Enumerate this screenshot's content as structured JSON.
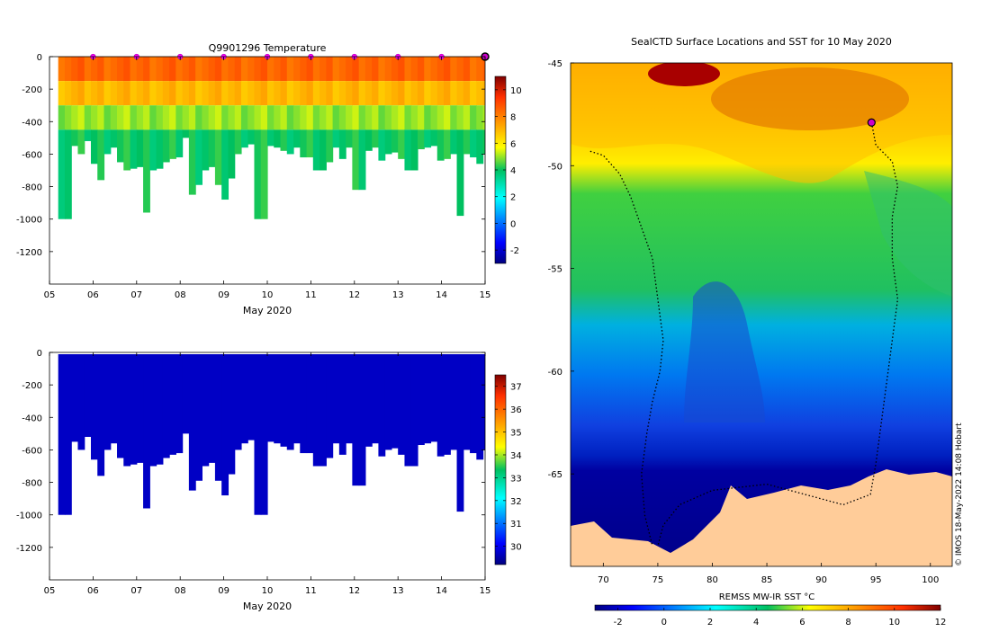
{
  "temperature_panel": {
    "title": "Q9901296  Temperature",
    "xlabel": "May 2020",
    "x_ticks": [
      "05",
      "06",
      "07",
      "08",
      "09",
      "10",
      "11",
      "12",
      "13",
      "14",
      "15"
    ],
    "y_ticks": [
      "0",
      "-200",
      "-400",
      "-600",
      "-800",
      "-1000",
      "-1200"
    ],
    "colorbar_ticks": [
      "10",
      "8",
      "6",
      "4",
      "2",
      "0",
      "-2"
    ]
  },
  "salinity_panel": {
    "xlabel": "May 2020",
    "x_ticks": [
      "05",
      "06",
      "07",
      "08",
      "09",
      "10",
      "11",
      "12",
      "13",
      "14",
      "15"
    ],
    "y_ticks": [
      "0",
      "-200",
      "-400",
      "-600",
      "-800",
      "-1000",
      "-1200"
    ],
    "colorbar_ticks": [
      "37",
      "36",
      "35",
      "34",
      "33",
      "32",
      "31",
      "30"
    ]
  },
  "map_panel": {
    "title": "SealCTD Surface Locations and SST for 10 May 2020",
    "lat_ticks": [
      "-45",
      "-50",
      "-55",
      "-60",
      "-65"
    ],
    "lon_ticks": [
      "70",
      "75",
      "80",
      "85",
      "90",
      "95",
      "100"
    ],
    "colorbar_label": "REMSS MW-IR SST °C",
    "colorbar_ticks": [
      "-2",
      "0",
      "2",
      "4",
      "6",
      "8",
      "10",
      "12"
    ],
    "credit": "© IMOS 18-May-2022 14:08 Hobart"
  },
  "chart_data": [
    {
      "type": "heatmap",
      "title": "Q9901296  Temperature",
      "xlabel": "May 2020",
      "ylabel": "",
      "xlim": [
        5,
        15
      ],
      "ylim": [
        -1400,
        0
      ],
      "clim": [
        -3,
        11
      ],
      "variable": "temperature",
      "profile_days": [
        5.2,
        5.35,
        5.5,
        5.65,
        5.8,
        5.95,
        6.1,
        6.25,
        6.4,
        6.55,
        6.7,
        6.85,
        7.0,
        7.15,
        7.3,
        7.45,
        7.6,
        7.75,
        7.9,
        8.05,
        8.2,
        8.35,
        8.5,
        8.65,
        8.8,
        8.95,
        9.1,
        9.25,
        9.4,
        9.55,
        9.7,
        9.85,
        10.0,
        10.15,
        10.3,
        10.45,
        10.6,
        10.75,
        10.9,
        11.05,
        11.2,
        11.35,
        11.5,
        11.65,
        11.8,
        11.95,
        12.1,
        12.25,
        12.4,
        12.55,
        12.7,
        12.85,
        13.0,
        13.15,
        13.3,
        13.45,
        13.6,
        13.75,
        13.9,
        14.05,
        14.2,
        14.35,
        14.5,
        14.65,
        14.8,
        14.95
      ],
      "profile_max_depths": [
        1000,
        1000,
        550,
        600,
        520,
        660,
        760,
        600,
        560,
        650,
        700,
        690,
        680,
        960,
        700,
        690,
        650,
        630,
        620,
        500,
        850,
        790,
        700,
        680,
        790,
        880,
        750,
        600,
        560,
        540,
        1000,
        1000,
        550,
        560,
        580,
        600,
        560,
        620,
        620,
        700,
        700,
        650,
        560,
        630,
        560,
        820,
        820,
        580,
        560,
        640,
        600,
        590,
        630,
        700,
        700,
        570,
        560,
        550,
        640,
        630,
        600,
        980,
        600,
        620,
        660,
        600
      ],
      "temperature_zones": [
        {
          "depth_range": [
            0,
            150
          ],
          "value": 8.5
        },
        {
          "depth_range": [
            150,
            300
          ],
          "value": 7
        },
        {
          "depth_range": [
            300,
            450
          ],
          "value": 5
        },
        {
          "depth_range": [
            450,
            1000
          ],
          "value": 4
        }
      ],
      "surface_markers_days": [
        6,
        7,
        8,
        9,
        10,
        11,
        12,
        13,
        14
      ],
      "latest_profile_day": 15
    },
    {
      "type": "heatmap",
      "title": "",
      "xlabel": "May 2020",
      "ylabel": "",
      "xlim": [
        5,
        15
      ],
      "ylim": [
        -1400,
        0
      ],
      "clim": [
        29.2,
        37.5
      ],
      "variable": "salinity",
      "uniform_value": 29.7,
      "profile_days": "same as temperature panel",
      "profile_max_depths": "same as temperature panel"
    },
    {
      "type": "heatmap",
      "title": "SealCTD Surface Locations and SST for 10 May 2020",
      "xlabel": "",
      "ylabel": "",
      "xlim": [
        67,
        102
      ],
      "ylim": [
        -69.5,
        -45
      ],
      "clim": [
        -3,
        12
      ],
      "colorbar_label": "REMSS MW-IR SST °C",
      "sst_by_latitude": [
        {
          "lat": -45,
          "sst": 10
        },
        {
          "lat": -48,
          "sst": 8
        },
        {
          "lat": -50,
          "sst": 6
        },
        {
          "lat": -52,
          "sst": 4.5
        },
        {
          "lat": -55,
          "sst": 3.5
        },
        {
          "lat": -58,
          "sst": 2
        },
        {
          "lat": -61,
          "sst": 0.5
        },
        {
          "lat": -63,
          "sst": -0.5
        },
        {
          "lat": -65,
          "sst": -1.5
        }
      ],
      "track_west": [
        [
          68.8,
          -49.3
        ],
        [
          70,
          -49.5
        ],
        [
          71.5,
          -50.4
        ],
        [
          72.5,
          -51.5
        ],
        [
          73.5,
          -53
        ],
        [
          74.5,
          -54.5
        ],
        [
          75,
          -56.5
        ],
        [
          75.5,
          -58.5
        ],
        [
          75.2,
          -60
        ],
        [
          74.5,
          -61.5
        ],
        [
          74,
          -63
        ],
        [
          73.5,
          -65
        ],
        [
          73.8,
          -67
        ],
        [
          74.5,
          -68.5
        ]
      ],
      "track_east": [
        [
          94.6,
          -47.9
        ],
        [
          95,
          -49
        ],
        [
          96.5,
          -49.8
        ],
        [
          97,
          -51
        ],
        [
          96.5,
          -52.5
        ],
        [
          96.5,
          -54.5
        ],
        [
          97,
          -56.5
        ],
        [
          96.5,
          -58.5
        ],
        [
          96,
          -60.5
        ],
        [
          95.5,
          -62.5
        ],
        [
          95,
          -64.5
        ],
        [
          94.5,
          -66
        ],
        [
          92,
          -66.5
        ],
        [
          85,
          -65.5
        ],
        [
          80,
          -65.8
        ],
        [
          77,
          -66.5
        ],
        [
          75.5,
          -67.5
        ],
        [
          75,
          -68.5
        ]
      ],
      "latest_position": [
        94.6,
        -47.9
      ]
    }
  ]
}
